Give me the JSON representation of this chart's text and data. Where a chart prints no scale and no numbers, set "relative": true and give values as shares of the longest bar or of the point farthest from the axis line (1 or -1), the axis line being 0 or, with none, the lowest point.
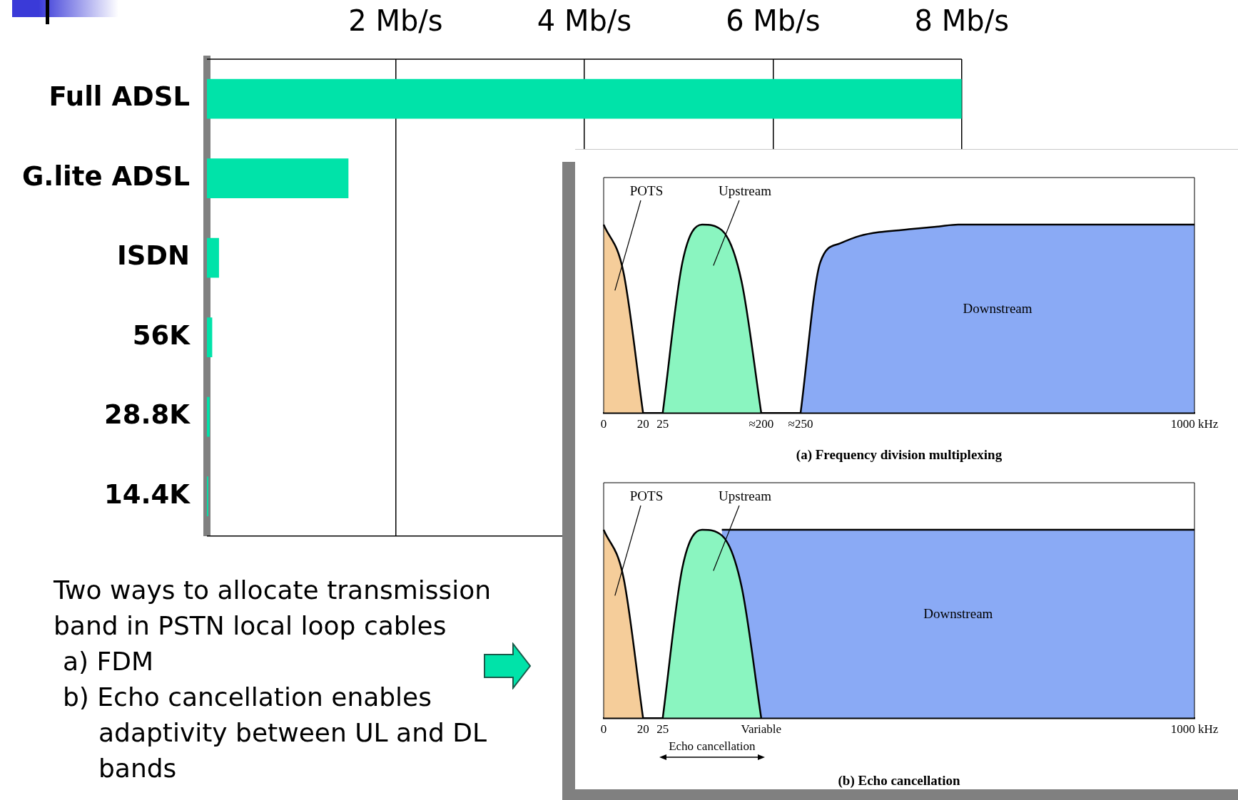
{
  "chart_data": [
    {
      "type": "bar",
      "orientation": "horizontal",
      "categories": [
        "Full ADSL",
        "G.lite ADSL",
        "ISDN",
        "56K",
        "28.8K",
        "14.4K"
      ],
      "values": [
        8,
        1.5,
        0.128,
        0.056,
        0.0288,
        0.0144
      ],
      "color": "#00e3a9",
      "xlim": [
        0,
        8
      ],
      "xticks": [
        {
          "value": 2,
          "label": "2 Mb/s"
        },
        {
          "value": 4,
          "label": "4 Mb/s"
        },
        {
          "value": 6,
          "label": "6 Mb/s"
        },
        {
          "value": 8,
          "label": "8 Mb/s"
        }
      ],
      "grid": "x",
      "annotations": [
        "Two ways to allocate transmission band in PSTN local loop cables",
        "a) FDM",
        "b) Echo cancellation enables adaptivity between UL and DL bands"
      ]
    },
    {
      "type": "area",
      "relative": true,
      "marker": "none",
      "xlabel": "(a) Frequency division multiplexing",
      "categories": [
        "0",
        null,
        "20",
        "25",
        null,
        null,
        null,
        null,
        "≈200",
        null,
        "≈250",
        null,
        null,
        null,
        null,
        null,
        null,
        null,
        null,
        null,
        null,
        null,
        null,
        null,
        null,
        null,
        null,
        null,
        null,
        null,
        "1000 kHz"
      ],
      "series": [
        {
          "name": "POTS",
          "color": "#f5cd9a",
          "values": [
            1,
            0.75,
            0,
            null,
            null,
            null,
            null,
            null,
            null,
            null,
            null,
            null,
            null,
            null,
            null,
            null,
            null,
            null,
            null,
            null,
            null,
            null,
            null,
            null,
            null,
            null,
            null,
            null,
            null,
            null,
            null
          ]
        },
        {
          "name": "Upstream",
          "color": "#8af5c0",
          "values": [
            null,
            null,
            null,
            0,
            0.8,
            1,
            0.97,
            0.7,
            0,
            null,
            null,
            null,
            null,
            null,
            null,
            null,
            null,
            null,
            null,
            null,
            null,
            null,
            null,
            null,
            null,
            null,
            null,
            null,
            null,
            null,
            null
          ]
        },
        {
          "name": "Downstream",
          "color": "#8aaaf5",
          "values": [
            null,
            null,
            null,
            null,
            null,
            null,
            null,
            null,
            null,
            null,
            0,
            0.8,
            0.9,
            0.94,
            0.96,
            0.97,
            0.98,
            0.99,
            1,
            1,
            1,
            1,
            1,
            1,
            1,
            1,
            1,
            1,
            1,
            1,
            1
          ]
        }
      ]
    },
    {
      "type": "area",
      "relative": true,
      "marker": "none",
      "xlabel": "(b) Echo cancellation",
      "annotations": [
        "Echo cancellation"
      ],
      "categories": [
        "0",
        null,
        "20",
        "25",
        null,
        null,
        null,
        null,
        "Variable",
        null,
        null,
        null,
        null,
        null,
        null,
        null,
        null,
        null,
        null,
        null,
        null,
        null,
        null,
        null,
        null,
        null,
        null,
        null,
        null,
        null,
        "1000 kHz"
      ],
      "series": [
        {
          "name": "POTS",
          "color": "#f5cd9a",
          "values": [
            1,
            0.75,
            0,
            null,
            null,
            null,
            null,
            null,
            null,
            null,
            null,
            null,
            null,
            null,
            null,
            null,
            null,
            null,
            null,
            null,
            null,
            null,
            null,
            null,
            null,
            null,
            null,
            null,
            null,
            null,
            null
          ]
        },
        {
          "name": "Upstream",
          "color": "#8af5c0",
          "values": [
            null,
            null,
            null,
            0,
            0.8,
            1,
            0.97,
            0.7,
            0,
            null,
            null,
            null,
            null,
            null,
            null,
            null,
            null,
            null,
            null,
            null,
            null,
            null,
            null,
            null,
            null,
            null,
            null,
            null,
            null,
            null,
            null
          ]
        },
        {
          "name": "Downstream",
          "color": "#8aaaf5",
          "values": [
            null,
            null,
            null,
            null,
            null,
            null,
            1,
            1,
            1,
            1,
            1,
            1,
            1,
            1,
            1,
            1,
            1,
            1,
            1,
            1,
            1,
            1,
            1,
            1,
            1,
            1,
            1,
            1,
            1,
            1,
            1
          ]
        }
      ]
    }
  ]
}
